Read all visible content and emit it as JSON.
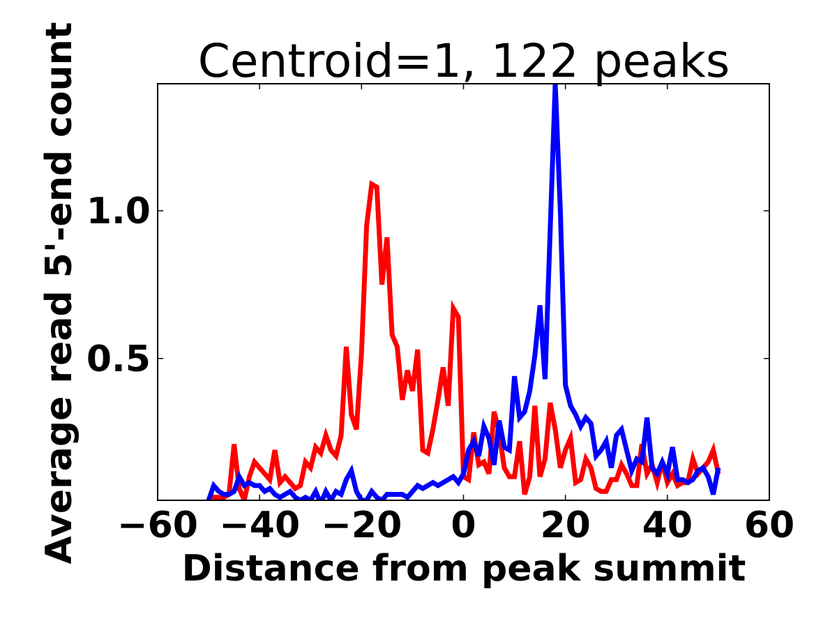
{
  "chart_data": {
    "type": "line",
    "title": "Centroid=1, 122 peaks",
    "xlabel": "Distance from peak summit",
    "ylabel": "Average read 5'-end count",
    "xlim": [
      -60,
      60
    ],
    "ylim": [
      0.02,
      1.43
    ],
    "xticks": [
      -60,
      -40,
      -20,
      0,
      20,
      40,
      60
    ],
    "xtick_labels": [
      "−60",
      "−40",
      "−20",
      "0",
      "20",
      "40",
      "60"
    ],
    "yticks": [
      0.5,
      1.0
    ],
    "ytick_labels": [
      "0.5",
      "1.0"
    ],
    "grid": false,
    "x": [
      -50,
      -49,
      -48,
      -47,
      -46,
      -45,
      -44,
      -43,
      -42,
      -41,
      -40,
      -39,
      -38,
      -37,
      -36,
      -35,
      -34,
      -33,
      -32,
      -31,
      -30,
      -29,
      -28,
      -27,
      -26,
      -25,
      -24,
      -23,
      -22,
      -21,
      -20,
      -19,
      -18,
      -17,
      -16,
      -15,
      -14,
      -13,
      -12,
      -11,
      -10,
      -9,
      -8,
      -7,
      -6,
      -5,
      -4,
      -3,
      -2,
      -1,
      0,
      1,
      2,
      3,
      4,
      5,
      6,
      7,
      8,
      9,
      10,
      11,
      12,
      13,
      14,
      15,
      16,
      17,
      18,
      19,
      20,
      21,
      22,
      23,
      24,
      25,
      26,
      27,
      28,
      29,
      30,
      31,
      32,
      33,
      34,
      35,
      36,
      37,
      38,
      39,
      40,
      41,
      42,
      43,
      44,
      45,
      46,
      47,
      48,
      49,
      50
    ],
    "series": [
      {
        "name": "red",
        "color": "#ff0000",
        "values": [
          0.04,
          0.03,
          0.03,
          0.03,
          0.04,
          0.21,
          0.06,
          0.02,
          0.1,
          0.15,
          0.13,
          0.11,
          0.09,
          0.19,
          0.08,
          0.1,
          0.08,
          0.06,
          0.07,
          0.15,
          0.13,
          0.2,
          0.18,
          0.24,
          0.19,
          0.17,
          0.24,
          0.54,
          0.31,
          0.26,
          0.52,
          0.95,
          1.09,
          1.08,
          0.75,
          0.91,
          0.58,
          0.54,
          0.36,
          0.46,
          0.39,
          0.53,
          0.19,
          0.18,
          0.26,
          0.36,
          0.47,
          0.34,
          0.67,
          0.64,
          0.1,
          0.09,
          0.25,
          0.14,
          0.15,
          0.11,
          0.32,
          0.25,
          0.13,
          0.1,
          0.1,
          0.22,
          0.04,
          0.1,
          0.34,
          0.1,
          0.16,
          0.35,
          0.26,
          0.13,
          0.19,
          0.23,
          0.08,
          0.09,
          0.16,
          0.13,
          0.06,
          0.05,
          0.05,
          0.09,
          0.09,
          0.14,
          0.11,
          0.07,
          0.07,
          0.21,
          0.11,
          0.14,
          0.08,
          0.15,
          0.08,
          0.11,
          0.07,
          0.08,
          0.08,
          0.16,
          0.11,
          0.13,
          0.15,
          0.19,
          0.11
        ]
      },
      {
        "name": "blue",
        "color": "#0000ff",
        "values": [
          0.02,
          0.07,
          0.05,
          0.04,
          0.04,
          0.05,
          0.1,
          0.07,
          0.08,
          0.07,
          0.07,
          0.05,
          0.06,
          0.04,
          0.03,
          0.04,
          0.05,
          0.03,
          0.02,
          0.03,
          0.02,
          0.05,
          0.01,
          0.05,
          0.02,
          0.05,
          0.04,
          0.09,
          0.12,
          0.05,
          0.02,
          0.02,
          0.05,
          0.03,
          0.02,
          0.04,
          0.04,
          0.04,
          0.04,
          0.03,
          0.05,
          0.07,
          0.06,
          0.07,
          0.08,
          0.07,
          0.08,
          0.09,
          0.1,
          0.08,
          0.11,
          0.19,
          0.22,
          0.17,
          0.27,
          0.23,
          0.14,
          0.29,
          0.2,
          0.19,
          0.44,
          0.3,
          0.32,
          0.39,
          0.51,
          0.68,
          0.43,
          0.93,
          1.43,
          1.0,
          0.41,
          0.34,
          0.31,
          0.27,
          0.3,
          0.28,
          0.17,
          0.19,
          0.22,
          0.13,
          0.24,
          0.26,
          0.19,
          0.12,
          0.16,
          0.15,
          0.3,
          0.13,
          0.11,
          0.15,
          0.11,
          0.2,
          0.09,
          0.09,
          0.08,
          0.09,
          0.12,
          0.13,
          0.1,
          0.04,
          0.13
        ]
      }
    ]
  }
}
